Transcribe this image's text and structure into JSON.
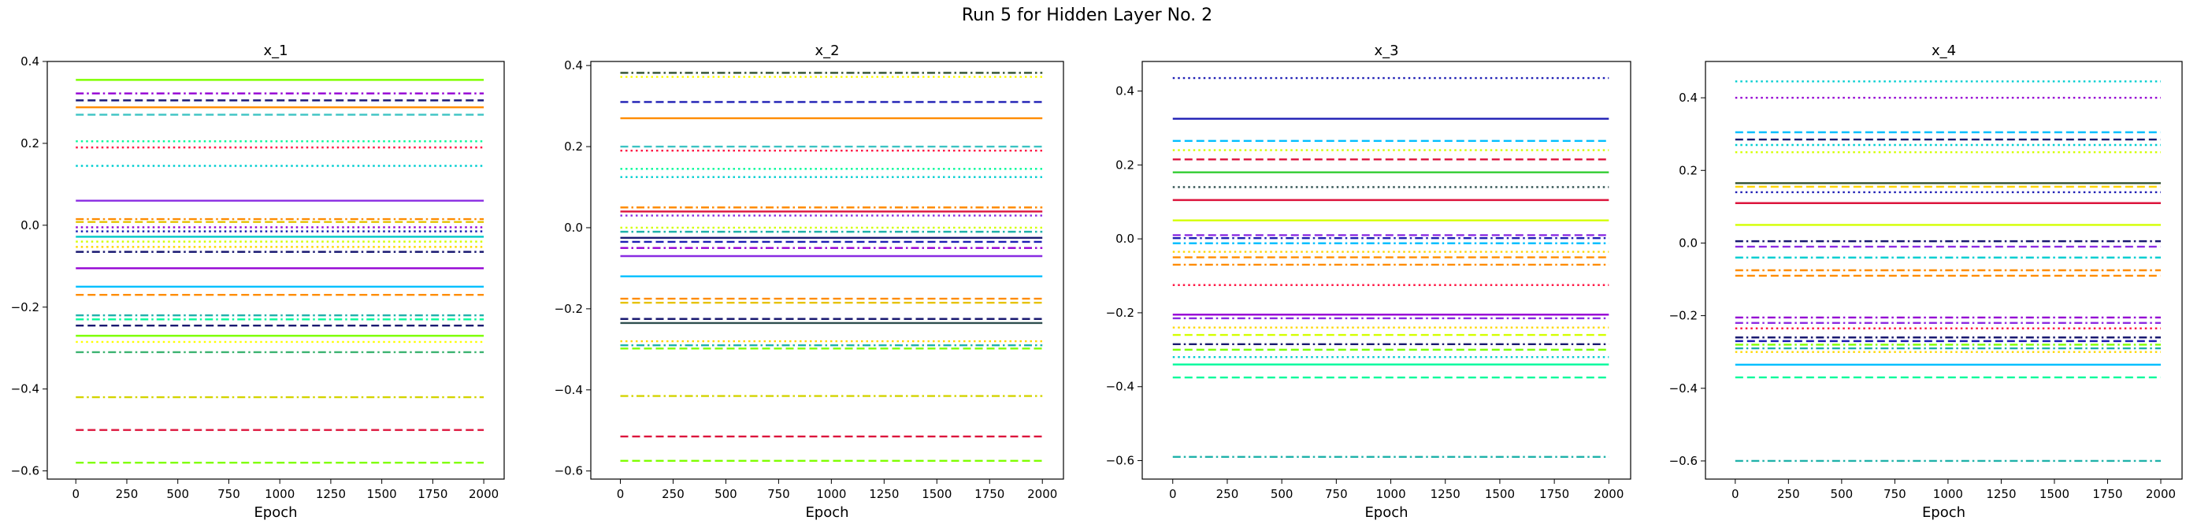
{
  "figure": {
    "suptitle": "Run 5 for Hidden Layer No. 2"
  },
  "chart_data": [
    {
      "type": "line",
      "title": "x_1",
      "xlabel": "Epoch",
      "ylabel": "",
      "xlim": [
        -140,
        2100
      ],
      "ylim": [
        -0.62,
        0.4
      ],
      "xticks": [
        0,
        250,
        500,
        750,
        1000,
        1250,
        1500,
        1750,
        2000
      ],
      "yticks": [
        -0.6,
        -0.4,
        -0.2,
        0.0,
        0.2,
        0.4
      ],
      "ytick_labels": [
        "−0.6",
        "−0.4",
        "−0.2",
        "0.0",
        "0.2",
        "0.4"
      ],
      "x": [
        0,
        2000
      ],
      "series": [
        {
          "y": 0.355,
          "color": "#7fff00",
          "style": "solid"
        },
        {
          "y": 0.322,
          "color": "#9400d3",
          "style": "dashdot"
        },
        {
          "y": 0.305,
          "color": "#1a1a7a",
          "style": "dashed"
        },
        {
          "y": 0.288,
          "color": "#ff8c00",
          "style": "solid"
        },
        {
          "y": 0.27,
          "color": "#3cc3c3",
          "style": "dashed"
        },
        {
          "y": 0.205,
          "color": "#00fa9a",
          "style": "dotted"
        },
        {
          "y": 0.19,
          "color": "#ff1744",
          "style": "dotted"
        },
        {
          "y": 0.145,
          "color": "#00ced1",
          "style": "dotted"
        },
        {
          "y": 0.06,
          "color": "#8a2be2",
          "style": "solid"
        },
        {
          "y": 0.015,
          "color": "#ff8c00",
          "style": "dashdot"
        },
        {
          "y": 0.008,
          "color": "#e6c200",
          "style": "dashed"
        },
        {
          "y": -0.005,
          "color": "#9400d3",
          "style": "dotted"
        },
        {
          "y": -0.015,
          "color": "#1e1eb4",
          "style": "dotted"
        },
        {
          "y": -0.028,
          "color": "#00c8c8",
          "style": "solid"
        },
        {
          "y": -0.04,
          "color": "#d4ff00",
          "style": "dotted"
        },
        {
          "y": -0.053,
          "color": "#ffd700",
          "style": "dotted"
        },
        {
          "y": -0.065,
          "color": "#191970",
          "style": "dashdot"
        },
        {
          "y": -0.105,
          "color": "#9400d3",
          "style": "solid"
        },
        {
          "y": -0.15,
          "color": "#00bfff",
          "style": "solid"
        },
        {
          "y": -0.17,
          "color": "#ff8c00",
          "style": "dashed"
        },
        {
          "y": -0.22,
          "color": "#20b2aa",
          "style": "dashdot"
        },
        {
          "y": -0.23,
          "color": "#00fa9a",
          "style": "dashdot"
        },
        {
          "y": -0.245,
          "color": "#191970",
          "style": "dashed"
        },
        {
          "y": -0.27,
          "color": "#7fff00",
          "style": "solid"
        },
        {
          "y": -0.285,
          "color": "#ffff00",
          "style": "dotted"
        },
        {
          "y": -0.31,
          "color": "#3cb371",
          "style": "dashdot"
        },
        {
          "y": -0.42,
          "color": "#d4d400",
          "style": "dashdot"
        },
        {
          "y": -0.5,
          "color": "#dc143c",
          "style": "dashed"
        },
        {
          "y": -0.58,
          "color": "#7fff00",
          "style": "dashed"
        }
      ]
    },
    {
      "type": "line",
      "title": "x_2",
      "xlabel": "Epoch",
      "ylabel": "",
      "xlim": [
        -140,
        2100
      ],
      "ylim": [
        -0.62,
        0.41
      ],
      "xticks": [
        0,
        250,
        500,
        750,
        1000,
        1250,
        1500,
        1750,
        2000
      ],
      "yticks": [
        -0.6,
        -0.4,
        -0.2,
        0.0,
        0.2,
        0.4
      ],
      "ytick_labels": [
        "−0.6",
        "−0.4",
        "−0.2",
        "0.0",
        "0.2",
        "0.4"
      ],
      "x": [
        0,
        2000
      ],
      "series": [
        {
          "y": 0.382,
          "color": "#2f4f2f",
          "style": "dashdot"
        },
        {
          "y": 0.372,
          "color": "#ffff00",
          "style": "dotted"
        },
        {
          "y": 0.31,
          "color": "#1e1eb4",
          "style": "dashed"
        },
        {
          "y": 0.27,
          "color": "#ff8c00",
          "style": "solid"
        },
        {
          "y": 0.2,
          "color": "#3cc3c3",
          "style": "dashed"
        },
        {
          "y": 0.19,
          "color": "#ff1744",
          "style": "dotted"
        },
        {
          "y": 0.145,
          "color": "#00fa9a",
          "style": "dotted"
        },
        {
          "y": 0.125,
          "color": "#00ced1",
          "style": "dotted"
        },
        {
          "y": 0.05,
          "color": "#ff8c00",
          "style": "dashdot"
        },
        {
          "y": 0.04,
          "color": "#dc143c",
          "style": "solid"
        },
        {
          "y": 0.03,
          "color": "#8a2be2",
          "style": "dotted"
        },
        {
          "y": 0.0,
          "color": "#d4ff00",
          "style": "dotted"
        },
        {
          "y": -0.01,
          "color": "#20b2aa",
          "style": "dashdot"
        },
        {
          "y": -0.025,
          "color": "#191970",
          "style": "solid"
        },
        {
          "y": -0.035,
          "color": "#1e1eb4",
          "style": "dashed"
        },
        {
          "y": -0.05,
          "color": "#9400d3",
          "style": "dashdot"
        },
        {
          "y": -0.07,
          "color": "#8a2be2",
          "style": "solid"
        },
        {
          "y": -0.12,
          "color": "#00bfff",
          "style": "solid"
        },
        {
          "y": -0.175,
          "color": "#ff8c00",
          "style": "dashed"
        },
        {
          "y": -0.185,
          "color": "#e6c200",
          "style": "dashed"
        },
        {
          "y": -0.225,
          "color": "#191970",
          "style": "dashed"
        },
        {
          "y": -0.235,
          "color": "#2f4f4f",
          "style": "solid"
        },
        {
          "y": -0.28,
          "color": "#ffd700",
          "style": "dotted"
        },
        {
          "y": -0.29,
          "color": "#20b2aa",
          "style": "dashdot"
        },
        {
          "y": -0.298,
          "color": "#7fff00",
          "style": "dashed"
        },
        {
          "y": -0.415,
          "color": "#d4d400",
          "style": "dashdot"
        },
        {
          "y": -0.515,
          "color": "#dc143c",
          "style": "dashed"
        },
        {
          "y": -0.575,
          "color": "#7fff00",
          "style": "dashed"
        }
      ]
    },
    {
      "type": "line",
      "title": "x_3",
      "xlabel": "Epoch",
      "ylabel": "",
      "xlim": [
        -140,
        2100
      ],
      "ylim": [
        -0.65,
        0.48
      ],
      "xticks": [
        0,
        250,
        500,
        750,
        1000,
        1250,
        1500,
        1750,
        2000
      ],
      "yticks": [
        -0.6,
        -0.4,
        -0.2,
        0.0,
        0.2,
        0.4
      ],
      "ytick_labels": [
        "−0.6",
        "−0.4",
        "−0.2",
        "0.0",
        "0.2",
        "0.4"
      ],
      "x": [
        0,
        2000
      ],
      "series": [
        {
          "y": 0.435,
          "color": "#1e1eb4",
          "style": "dotted"
        },
        {
          "y": 0.325,
          "color": "#1e1eb4",
          "style": "solid"
        },
        {
          "y": 0.265,
          "color": "#00bfff",
          "style": "dashed"
        },
        {
          "y": 0.24,
          "color": "#d4ff00",
          "style": "dotted"
        },
        {
          "y": 0.215,
          "color": "#dc143c",
          "style": "dashed"
        },
        {
          "y": 0.18,
          "color": "#32cd32",
          "style": "solid"
        },
        {
          "y": 0.14,
          "color": "#2f4f4f",
          "style": "dotted"
        },
        {
          "y": 0.105,
          "color": "#dc143c",
          "style": "solid"
        },
        {
          "y": 0.05,
          "color": "#d4ff00",
          "style": "solid"
        },
        {
          "y": 0.01,
          "color": "#8a2be2",
          "style": "dashed"
        },
        {
          "y": 0.002,
          "color": "#1e1eb4",
          "style": "dashdot"
        },
        {
          "y": -0.012,
          "color": "#00bfff",
          "style": "dashdot"
        },
        {
          "y": -0.035,
          "color": "#ffd700",
          "style": "dotted"
        },
        {
          "y": -0.05,
          "color": "#ff8c00",
          "style": "dashed"
        },
        {
          "y": -0.07,
          "color": "#ff8c00",
          "style": "dashdot"
        },
        {
          "y": -0.125,
          "color": "#ff1744",
          "style": "dotted"
        },
        {
          "y": -0.205,
          "color": "#9400d3",
          "style": "solid"
        },
        {
          "y": -0.215,
          "color": "#8a2be2",
          "style": "dashdot"
        },
        {
          "y": -0.24,
          "color": "#ffd700",
          "style": "dotted"
        },
        {
          "y": -0.26,
          "color": "#d4ff00",
          "style": "dashed"
        },
        {
          "y": -0.285,
          "color": "#191970",
          "style": "dashdot"
        },
        {
          "y": -0.3,
          "color": "#7fff00",
          "style": "dashed"
        },
        {
          "y": -0.32,
          "color": "#00ced1",
          "style": "dotted"
        },
        {
          "y": -0.34,
          "color": "#00fa9a",
          "style": "solid"
        },
        {
          "y": -0.375,
          "color": "#00fa9a",
          "style": "dashed"
        },
        {
          "y": -0.59,
          "color": "#20b2aa",
          "style": "dashdot"
        }
      ]
    },
    {
      "type": "line",
      "title": "x_4",
      "xlabel": "Epoch",
      "ylabel": "",
      "xlim": [
        -140,
        2100
      ],
      "ylim": [
        -0.65,
        0.5
      ],
      "xticks": [
        0,
        250,
        500,
        750,
        1000,
        1250,
        1500,
        1750,
        2000
      ],
      "yticks": [
        -0.6,
        -0.4,
        -0.2,
        0.0,
        0.2,
        0.4
      ],
      "ytick_labels": [
        "−0.6",
        "−0.4",
        "−0.2",
        "0.0",
        "0.2",
        "0.4"
      ],
      "x": [
        0,
        2000
      ],
      "series": [
        {
          "y": 0.445,
          "color": "#00ced1",
          "style": "dotted"
        },
        {
          "y": 0.4,
          "color": "#9400d3",
          "style": "dotted"
        },
        {
          "y": 0.305,
          "color": "#00bfff",
          "style": "dashed"
        },
        {
          "y": 0.285,
          "color": "#191970",
          "style": "dashed"
        },
        {
          "y": 0.27,
          "color": "#00ced1",
          "style": "dotted"
        },
        {
          "y": 0.25,
          "color": "#d4ff00",
          "style": "dotted"
        },
        {
          "y": 0.165,
          "color": "#2f4f2f",
          "style": "solid"
        },
        {
          "y": 0.155,
          "color": "#ffd700",
          "style": "dashed"
        },
        {
          "y": 0.14,
          "color": "#1e1eb4",
          "style": "dotted"
        },
        {
          "y": 0.11,
          "color": "#dc143c",
          "style": "solid"
        },
        {
          "y": 0.05,
          "color": "#d4ff00",
          "style": "solid"
        },
        {
          "y": 0.005,
          "color": "#191970",
          "style": "dashdot"
        },
        {
          "y": -0.01,
          "color": "#8a2be2",
          "style": "dashed"
        },
        {
          "y": -0.04,
          "color": "#00ced1",
          "style": "dashdot"
        },
        {
          "y": -0.075,
          "color": "#ff8c00",
          "style": "dashdot"
        },
        {
          "y": -0.09,
          "color": "#ff8c00",
          "style": "dashed"
        },
        {
          "y": -0.205,
          "color": "#9400d3",
          "style": "dashdot"
        },
        {
          "y": -0.22,
          "color": "#8a2be2",
          "style": "dashdot"
        },
        {
          "y": -0.235,
          "color": "#ff1744",
          "style": "dotted"
        },
        {
          "y": -0.26,
          "color": "#191970",
          "style": "dashdot"
        },
        {
          "y": -0.27,
          "color": "#1e1eb4",
          "style": "dashed"
        },
        {
          "y": -0.28,
          "color": "#7fff00",
          "style": "dashdot"
        },
        {
          "y": -0.29,
          "color": "#20b2aa",
          "style": "dashdot"
        },
        {
          "y": -0.3,
          "color": "#ffd700",
          "style": "dotted"
        },
        {
          "y": -0.335,
          "color": "#00bfff",
          "style": "solid"
        },
        {
          "y": -0.37,
          "color": "#00fa9a",
          "style": "dashed"
        },
        {
          "y": -0.6,
          "color": "#20b2aa",
          "style": "dashdot"
        }
      ]
    }
  ]
}
